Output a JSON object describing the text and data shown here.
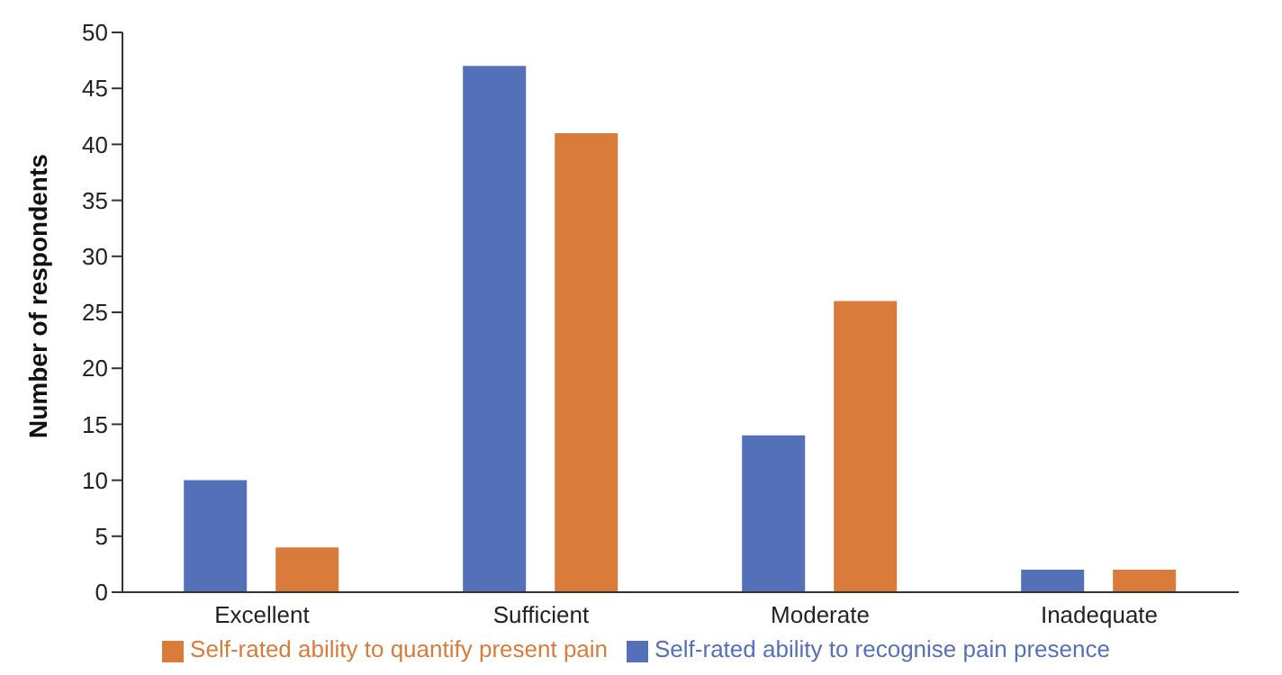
{
  "chart_data": {
    "type": "bar",
    "ylabel": "Number of respondents",
    "categories": [
      "Excellent",
      "Sufficient",
      "Moderate",
      "Inadequate"
    ],
    "series": [
      {
        "name": "Self-rated ability to recognise pain presence",
        "color": "#5470b8",
        "values": [
          10,
          47,
          14,
          2
        ]
      },
      {
        "name": "Self-rated ability to quantify present pain",
        "color": "#d97b3a",
        "values": [
          4,
          41,
          26,
          2
        ]
      }
    ],
    "ylim": [
      0,
      50
    ],
    "yticks": [
      0,
      5,
      10,
      15,
      20,
      25,
      30,
      35,
      40,
      45,
      50
    ],
    "grid": false,
    "legend": "bottom"
  }
}
